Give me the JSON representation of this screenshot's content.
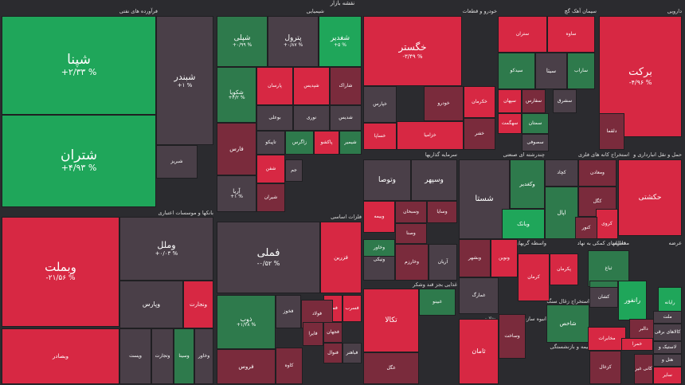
{
  "title": "نقشه بازار",
  "colors": {
    "background": "#2b2b2f",
    "positive_strong": "#1fa65a",
    "positive": "#2e7a4c",
    "neutral": "#4a3f48",
    "negative": "#7a2b3c",
    "negative_strong": "#d72843"
  },
  "sectors": [
    {
      "name": "فرآورده های نفتی"
    },
    {
      "name": "شیمیایی"
    },
    {
      "name": "خودرو و قطعات"
    },
    {
      "name": "سیمان آهک گچ"
    },
    {
      "name": "دارویی"
    },
    {
      "name": "بانکها و موسسات اعتباری"
    },
    {
      "name": "فلزات اساسی"
    },
    {
      "name": "سرمایه گذاریها"
    },
    {
      "name": "چندرشته ای صنعتی"
    },
    {
      "name": "استخراج کانه های فلزی"
    },
    {
      "name": "حمل و نقل انبارداری و"
    },
    {
      "name": "واسطه گریهای مالی و پولی"
    },
    {
      "name": "فعالیتهای کمکی به نهاد"
    },
    {
      "name": "مخابرات"
    },
    {
      "name": "عرضه"
    },
    {
      "name": "غذایی بجز قند وشکر"
    },
    {
      "name": "انبوه سازی املاک و مستغلات"
    },
    {
      "name": "استخراج زغال سنگ"
    },
    {
      "name": "بیمه و بازنشستگی"
    }
  ],
  "tiles": [
    {
      "symbol": "شپنا",
      "change": "+۲/۳۳ %"
    },
    {
      "symbol": "شتران",
      "change": "+۴/۹۳ %"
    },
    {
      "symbol": "شبندر",
      "change": "+۱ %"
    },
    {
      "symbol": "شبریز",
      "change": ""
    },
    {
      "symbol": "شپلی",
      "change": "+۰/۹۹ %"
    },
    {
      "symbol": "پترول",
      "change": "+۰/۸۷ %"
    },
    {
      "symbol": "شغدیر",
      "change": "+۵ %"
    },
    {
      "symbol": "شکویا",
      "change": "+۴/۲ %"
    },
    {
      "symbol": "پارسان",
      "change": ""
    },
    {
      "symbol": "شپدیس",
      "change": ""
    },
    {
      "symbol": "شاراک",
      "change": ""
    },
    {
      "symbol": "بوعلی",
      "change": ""
    },
    {
      "symbol": "نوری",
      "change": ""
    },
    {
      "symbol": "شدیس",
      "change": ""
    },
    {
      "symbol": "فارس",
      "change": ""
    },
    {
      "symbol": "زاگرس",
      "change": ""
    },
    {
      "symbol": "تاپیکو",
      "change": ""
    },
    {
      "symbol": "پاکشو",
      "change": ""
    },
    {
      "symbol": "شیمیر",
      "change": ""
    },
    {
      "symbol": "آریا",
      "change": "+۱ %"
    },
    {
      "symbol": "شفن",
      "change": ""
    },
    {
      "symbol": "جم",
      "change": ""
    },
    {
      "symbol": "شیران",
      "change": ""
    },
    {
      "symbol": "خگستر",
      "change": "-۳/۴۹ %"
    },
    {
      "symbol": "خپارس",
      "change": ""
    },
    {
      "symbol": "خساپا",
      "change": ""
    },
    {
      "symbol": "خودرو",
      "change": ""
    },
    {
      "symbol": "خزامیا",
      "change": ""
    },
    {
      "symbol": "خکرمان",
      "change": ""
    },
    {
      "symbol": "خفنر",
      "change": ""
    },
    {
      "symbol": "ستران",
      "change": ""
    },
    {
      "symbol": "ساوه",
      "change": ""
    },
    {
      "symbol": "سیتا",
      "change": ""
    },
    {
      "symbol": "سیدکو",
      "change": ""
    },
    {
      "symbol": "ساراب",
      "change": ""
    },
    {
      "symbol": "سپهان",
      "change": ""
    },
    {
      "symbol": "سفارس",
      "change": ""
    },
    {
      "symbol": "سشرق",
      "change": ""
    },
    {
      "symbol": "سمتان",
      "change": ""
    },
    {
      "symbol": "سهگمت",
      "change": ""
    },
    {
      "symbol": "سصوفی",
      "change": ""
    },
    {
      "symbol": "برکت",
      "change": "-۴/۹۶ %"
    },
    {
      "symbol": "دلقما",
      "change": ""
    },
    {
      "symbol": "وبملت",
      "change": "-۲۱/۵۶ %"
    },
    {
      "symbol": "وملل",
      "change": "+۰/۰۳ %"
    },
    {
      "symbol": "وپارس",
      "change": ""
    },
    {
      "symbol": "ونجارت",
      "change": ""
    },
    {
      "symbol": "وبصادر",
      "change": ""
    },
    {
      "symbol": "وپست",
      "change": ""
    },
    {
      "symbol": "وتجارت",
      "change": ""
    },
    {
      "symbol": "وسینا",
      "change": ""
    },
    {
      "symbol": "وخاور",
      "change": ""
    },
    {
      "symbol": "وتوصا",
      "change": ""
    },
    {
      "symbol": "وسپهر",
      "change": ""
    },
    {
      "symbol": "وبیمه",
      "change": ""
    },
    {
      "symbol": "وسبحان",
      "change": ""
    },
    {
      "symbol": "وسایا",
      "change": ""
    },
    {
      "symbol": "وصنا",
      "change": ""
    },
    {
      "symbol": "وکغدیر",
      "change": ""
    },
    {
      "symbol": "شستا",
      "change": ""
    },
    {
      "symbol": "وبانک",
      "change": ""
    },
    {
      "symbol": "کچاد",
      "change": ""
    },
    {
      "symbol": "ومعادن",
      "change": ""
    },
    {
      "symbol": "کگل",
      "change": ""
    },
    {
      "symbol": "اپال",
      "change": ""
    },
    {
      "symbol": "کروی",
      "change": ""
    },
    {
      "symbol": "کنور",
      "change": ""
    },
    {
      "symbol": "حکشتی",
      "change": ""
    },
    {
      "symbol": "فملی",
      "change": "-۰/۵۲ %"
    },
    {
      "symbol": "فزرین",
      "change": ""
    },
    {
      "symbol": "ذوب",
      "change": "+۱/۲۸ %"
    },
    {
      "symbol": "فخوز",
      "change": ""
    },
    {
      "symbol": "فسپا",
      "change": ""
    },
    {
      "symbol": "فولاد",
      "change": ""
    },
    {
      "symbol": "فروس",
      "change": ""
    },
    {
      "symbol": "کاوه",
      "change": ""
    },
    {
      "symbol": "فجهان",
      "change": ""
    },
    {
      "symbol": "فسرب",
      "change": ""
    },
    {
      "symbol": "فایرا",
      "change": ""
    },
    {
      "symbol": "فباهنر",
      "change": ""
    },
    {
      "symbol": "فنوال",
      "change": ""
    },
    {
      "symbol": "فسازان",
      "change": ""
    },
    {
      "symbol": "ونیکی",
      "change": ""
    },
    {
      "symbol": "وخارزم",
      "change": ""
    },
    {
      "symbol": "آریان",
      "change": ""
    },
    {
      "symbol": "وخاور",
      "change": ""
    },
    {
      "symbol": "وبشهر",
      "change": ""
    },
    {
      "symbol": "ونوین",
      "change": ""
    },
    {
      "symbol": "تکالا",
      "change": ""
    },
    {
      "symbol": "غبینو",
      "change": ""
    },
    {
      "symbol": "غگل",
      "change": ""
    },
    {
      "symbol": "غمارگ",
      "change": ""
    },
    {
      "symbol": "وساخت",
      "change": ""
    },
    {
      "symbol": "ثامان",
      "change": ""
    },
    {
      "symbol": "کرمان",
      "change": ""
    },
    {
      "symbol": "شاخص",
      "change": ""
    },
    {
      "symbol": "کزغال",
      "change": ""
    },
    {
      "symbol": "ثباغ",
      "change": ""
    },
    {
      "symbol": "اخابر",
      "change": ""
    },
    {
      "symbol": "رانفور",
      "change": ""
    },
    {
      "symbol": "کشان",
      "change": ""
    },
    {
      "symbol": "رایانه",
      "change": ""
    },
    {
      "symbol": "پکرمان",
      "change": ""
    },
    {
      "symbol": "دالبر",
      "change": ""
    },
    {
      "symbol": "مخابرات",
      "change": ""
    },
    {
      "symbol": "خمرا",
      "change": ""
    },
    {
      "symbol": "ملت",
      "change": ""
    },
    {
      "symbol": "کالاهای برقی",
      "change": ""
    },
    {
      "symbol": "لاستیک و",
      "change": ""
    },
    {
      "symbol": "هتل و",
      "change": ""
    },
    {
      "symbol": "سایر",
      "change": ""
    },
    {
      "symbol": "کانی غیر",
      "change": ""
    },
    {
      "symbol": "دستگاهها",
      "change": ""
    },
    {
      "symbol": "منسوجات",
      "change": ""
    }
  ]
}
